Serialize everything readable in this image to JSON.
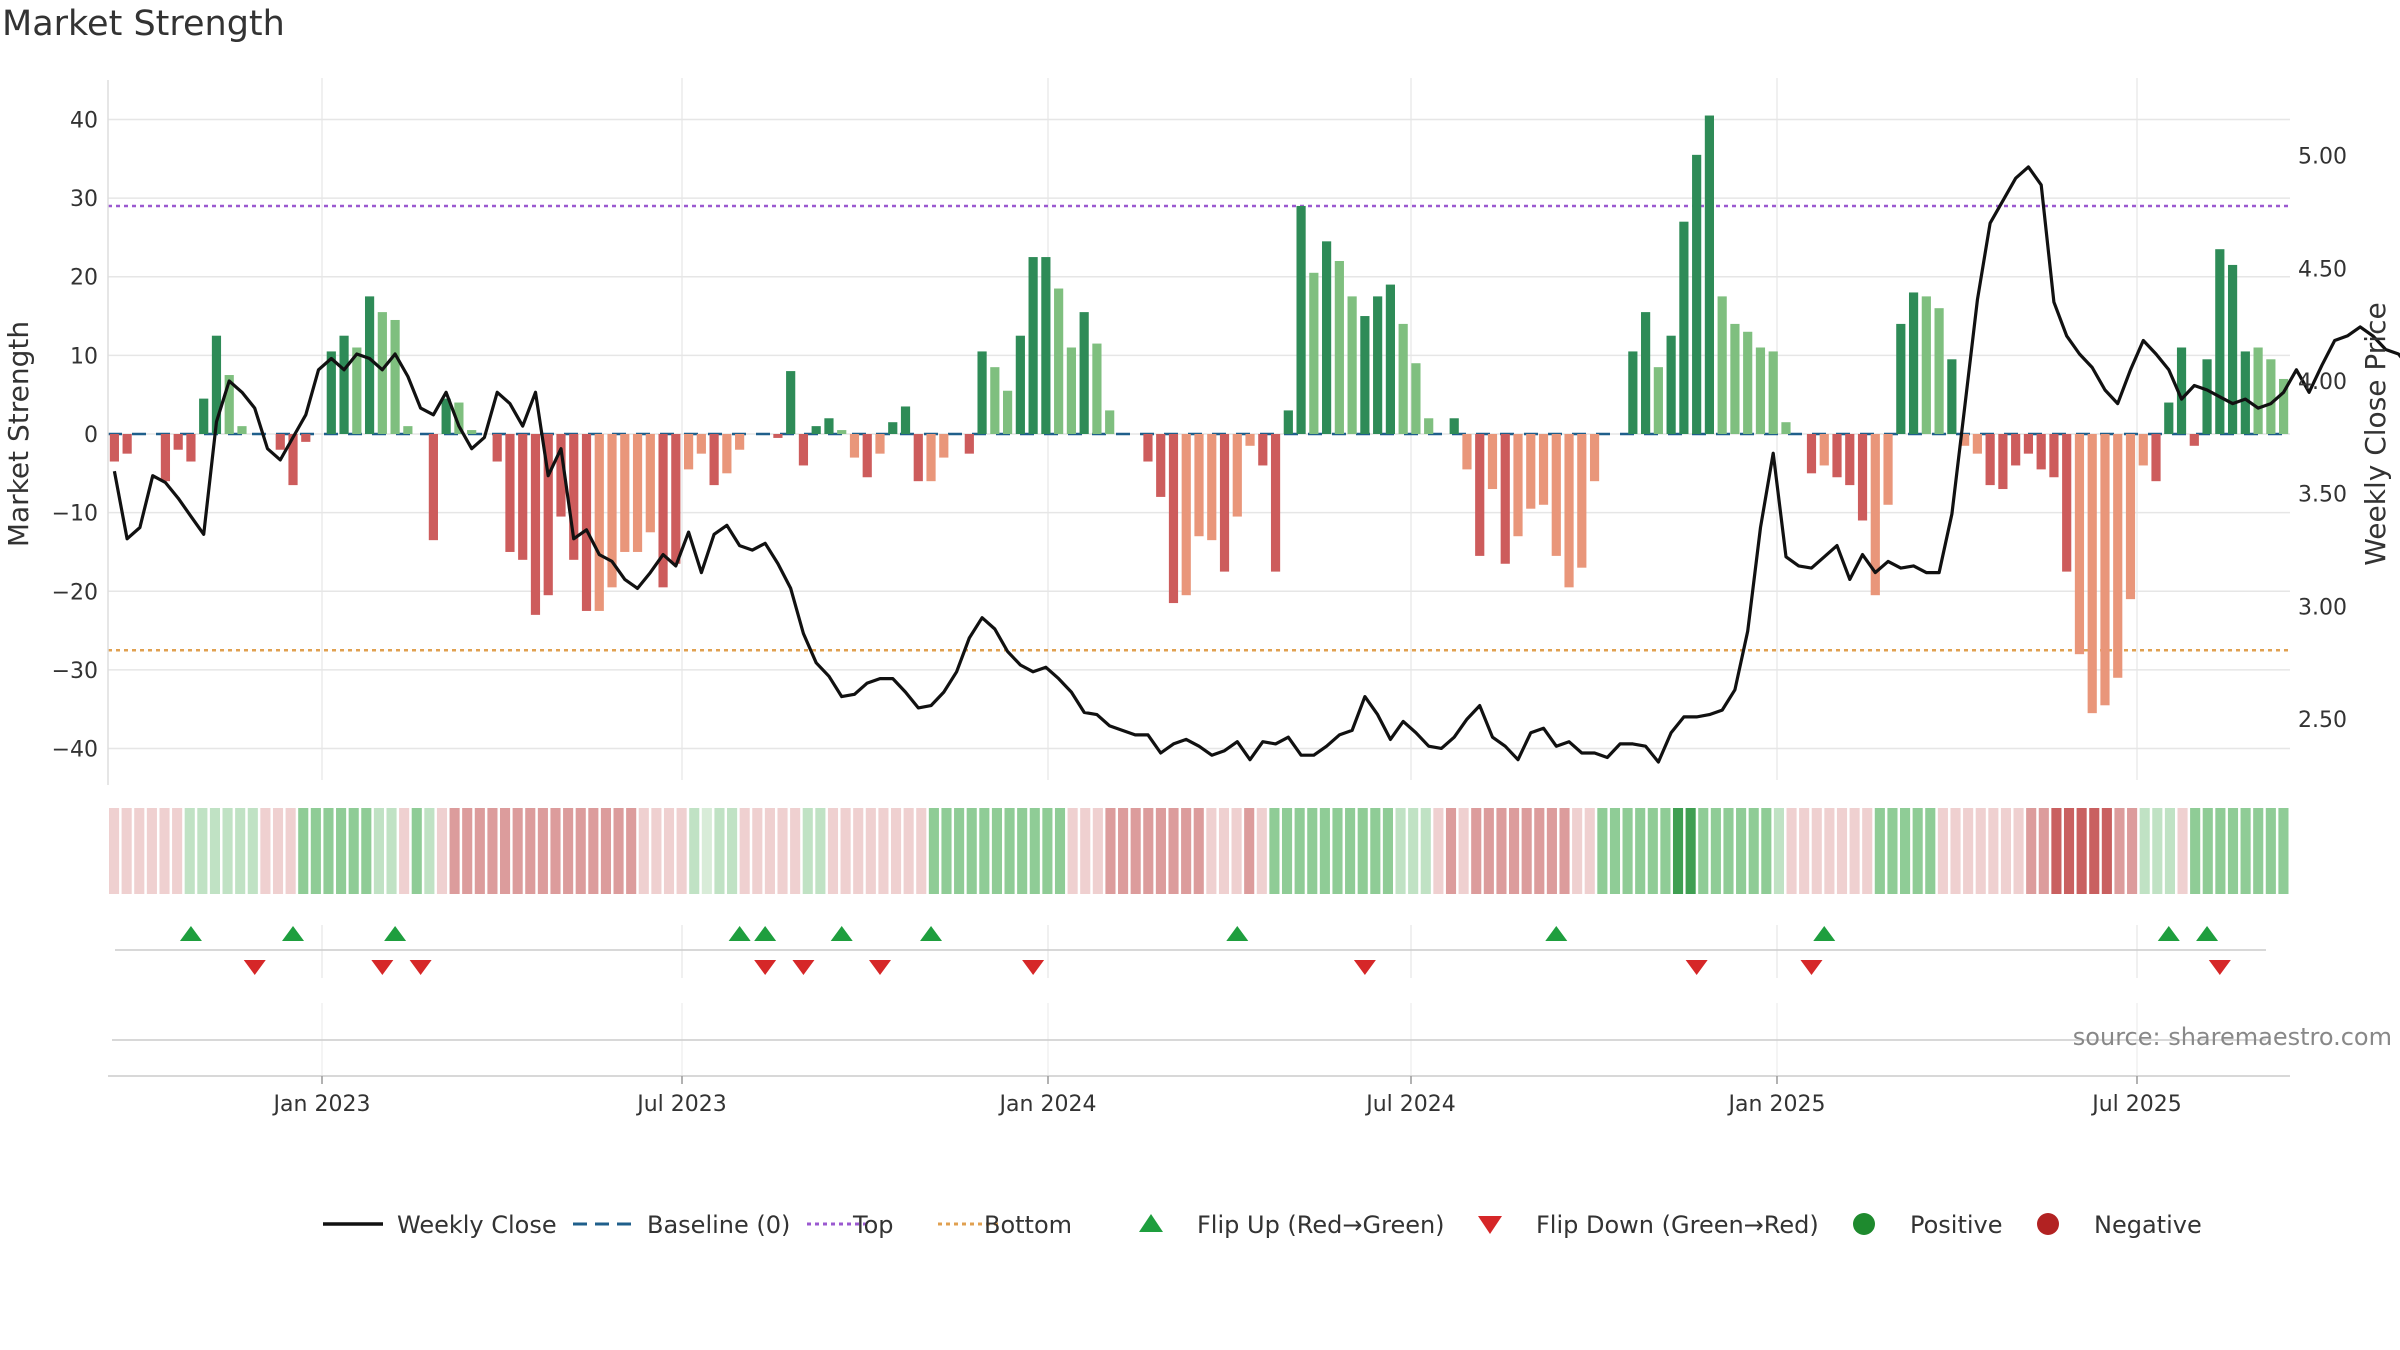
{
  "title": "Market Strength",
  "source": "source: sharemaestro.com",
  "colors": {
    "strong_pos": "#2e8b57",
    "weak_pos": "#7fbf7f",
    "strong_neg": "#cd5c5c",
    "weak_neg": "#e9967a",
    "price_line": "#111111",
    "baseline": "#1f5f8b",
    "top": "#9b59d0",
    "bottom": "#e0a050",
    "flip_up": "#1e9e3e",
    "flip_down": "#d62728",
    "positive": "#1e8a2e",
    "negative": "#b22222",
    "grid": "#e6e6e6"
  },
  "chart_data": {
    "type": "bar",
    "x_ticks": [
      "Jan 2023",
      "Jul 2023",
      "Jan 2024",
      "Jul 2024",
      "Jan 2025",
      "Jul 2025"
    ],
    "y_left": {
      "label": "Market Strength",
      "ticks": [
        "40",
        "30",
        "20",
        "10",
        "0",
        "−10",
        "−20",
        "−30",
        "−40"
      ],
      "range": [
        -44,
        44
      ]
    },
    "y_right": {
      "label": "Weekly Close Price",
      "ticks": [
        "5.00",
        "4.50",
        "4.00",
        "3.50",
        "3.00",
        "2.50"
      ],
      "range": [
        2.23,
        5.3
      ]
    },
    "top_level": 29,
    "bottom_level": -27.5,
    "baseline": 0,
    "strength": [
      -3.5,
      -2.5,
      0,
      0,
      -6,
      -2,
      -3.5,
      4.5,
      12.5,
      7.5,
      1,
      0,
      0,
      -2,
      -6.5,
      -1,
      0,
      10.5,
      12.5,
      11,
      17.5,
      15.5,
      14.5,
      1,
      0,
      -13.5,
      4.5,
      4,
      0.5,
      0,
      -3.5,
      -15,
      -16,
      -23,
      -20.5,
      -10.5,
      -16,
      -22.5,
      -22.5,
      -19.5,
      -15,
      -15,
      -12.5,
      -19.5,
      -16.5,
      -4.5,
      -2.5,
      -6.5,
      -5,
      -2,
      0,
      0,
      -0.5,
      8,
      -4,
      1,
      2,
      0.5,
      -3,
      -5.5,
      -2.5,
      1.5,
      3.5,
      -6,
      -6,
      -3,
      0,
      -2.5,
      10.5,
      8.5,
      5.5,
      12.5,
      22.5,
      22.5,
      18.5,
      11,
      15.5,
      11.5,
      3,
      0,
      0,
      -3.5,
      -8,
      -21.5,
      -20.5,
      -13,
      -13.5,
      -17.5,
      -10.5,
      -1.5,
      -4,
      -17.5,
      3,
      29,
      20.5,
      24.5,
      22,
      17.5,
      15,
      17.5,
      19,
      14,
      9,
      2,
      0,
      2,
      -4.5,
      -15.5,
      -7,
      -16.5,
      -13,
      -9.5,
      -9,
      -15.5,
      -19.5,
      -17,
      -6,
      0,
      0,
      10.5,
      15.5,
      8.5,
      12.5,
      27,
      35.5,
      40.5,
      17.5,
      14,
      13,
      11,
      10.5,
      1.5,
      0,
      -5,
      -4,
      -5.5,
      -6.5,
      -11,
      -20.5,
      -9,
      14,
      18,
      17.5,
      16,
      9.5,
      -1.5,
      -2.5,
      -6.5,
      -7,
      -4,
      -2.5,
      -4.5,
      -5.5,
      -17.5,
      -28,
      -35.5,
      -34.5,
      -31,
      -21,
      -4,
      -6,
      4,
      11,
      -1.5,
      9.5,
      23.5,
      21.5,
      10.5,
      11,
      9.5,
      7
    ],
    "bar_shade": [
      1,
      1,
      0,
      0,
      1,
      1,
      1,
      1,
      1,
      0,
      0,
      0,
      0,
      1,
      1,
      1,
      0,
      1,
      1,
      0,
      1,
      0,
      0,
      0,
      0,
      1,
      1,
      0,
      0,
      0,
      1,
      1,
      1,
      1,
      1,
      1,
      1,
      1,
      0,
      0,
      0,
      0,
      0,
      1,
      1,
      0,
      0,
      1,
      0,
      0,
      0,
      0,
      1,
      1,
      1,
      1,
      1,
      0,
      0,
      1,
      0,
      1,
      1,
      1,
      0,
      0,
      0,
      1,
      1,
      0,
      0,
      1,
      1,
      1,
      0,
      0,
      1,
      0,
      0,
      0,
      0,
      1,
      1,
      1,
      0,
      0,
      0,
      1,
      0,
      0,
      1,
      1,
      1,
      1,
      0,
      1,
      0,
      0,
      1,
      1,
      1,
      0,
      0,
      0,
      0,
      1,
      0,
      1,
      0,
      1,
      0,
      0,
      0,
      0,
      0,
      0,
      0,
      0,
      0,
      1,
      1,
      0,
      1,
      1,
      1,
      1,
      0,
      0,
      0,
      0,
      0,
      0,
      0,
      1,
      0,
      1,
      1,
      1,
      0,
      0,
      1,
      1,
      0,
      0,
      1,
      0,
      0,
      1,
      1,
      1,
      1,
      1,
      1,
      1,
      0,
      0,
      0,
      0,
      0,
      0,
      1,
      1,
      1,
      1,
      1,
      1,
      1,
      1,
      0,
      0,
      0,
      0,
      0
    ],
    "weekly_close": [
      3.6,
      3.3,
      3.35,
      3.58,
      3.55,
      3.48,
      3.4,
      3.32,
      3.82,
      4,
      3.95,
      3.88,
      3.7,
      3.65,
      3.75,
      3.85,
      4.05,
      4.1,
      4.05,
      4.12,
      4.1,
      4.05,
      4.12,
      4.02,
      3.88,
      3.85,
      3.95,
      3.8,
      3.7,
      3.75,
      3.95,
      3.9,
      3.8,
      3.95,
      3.58,
      3.7,
      3.3,
      3.34,
      3.23,
      3.2,
      3.12,
      3.08,
      3.15,
      3.23,
      3.18,
      3.33,
      3.15,
      3.32,
      3.36,
      3.27,
      3.25,
      3.28,
      3.19,
      3.08,
      2.88,
      2.75,
      2.69,
      2.6,
      2.61,
      2.66,
      2.68,
      2.68,
      2.62,
      2.55,
      2.56,
      2.62,
      2.71,
      2.86,
      2.95,
      2.9,
      2.8,
      2.74,
      2.71,
      2.73,
      2.68,
      2.62,
      2.53,
      2.52,
      2.47,
      2.45,
      2.43,
      2.43,
      2.35,
      2.39,
      2.41,
      2.38,
      2.34,
      2.36,
      2.4,
      2.32,
      2.4,
      2.39,
      2.42,
      2.34,
      2.34,
      2.38,
      2.43,
      2.45,
      2.6,
      2.52,
      2.41,
      2.49,
      2.44,
      2.38,
      2.37,
      2.42,
      2.5,
      2.56,
      2.42,
      2.38,
      2.32,
      2.44,
      2.46,
      2.38,
      2.4,
      2.35,
      2.35,
      2.33,
      2.39,
      2.39,
      2.38,
      2.31,
      2.44,
      2.51,
      2.51,
      2.52,
      2.54,
      2.63,
      2.89,
      3.35,
      3.68,
      3.22,
      3.18,
      3.17,
      3.22,
      3.27,
      3.12,
      3.23,
      3.15,
      3.2,
      3.17,
      3.18,
      3.15,
      3.15,
      3.41,
      3.88,
      4.36,
      4.7,
      4.8,
      4.9,
      4.95,
      4.87,
      4.35,
      4.2,
      4.12,
      4.06,
      3.96,
      3.9,
      4.05,
      4.18,
      4.12,
      4.05,
      3.92,
      3.98,
      3.96,
      3.93,
      3.9,
      3.92,
      3.88,
      3.9,
      3.95,
      4.05,
      3.95,
      4.07,
      4.18,
      4.2,
      4.24,
      4.2,
      4.14,
      4.12,
      4.05
    ],
    "flip_up_weeks": [
      6,
      14,
      22,
      49,
      51,
      57,
      64,
      88,
      113,
      134,
      161,
      164
    ],
    "flip_down_weeks": [
      11,
      21,
      24,
      51,
      54,
      60,
      72,
      98,
      124,
      133,
      165
    ],
    "band_levels": [
      -1,
      -1,
      -1,
      -1,
      -1,
      -1,
      1,
      1,
      1,
      1,
      1,
      1,
      -1,
      -1,
      -1,
      2,
      2,
      2,
      2,
      2,
      2,
      1,
      1,
      -1,
      2,
      1,
      -1,
      -2,
      -2,
      -2,
      -2,
      -2,
      -2,
      -2,
      -2,
      -2,
      -2,
      -2,
      -2,
      -2,
      -2,
      -2,
      -1,
      -1,
      -1,
      -1,
      1,
      0,
      1,
      1,
      -1,
      -1,
      -1,
      -1,
      -1,
      1,
      1,
      -1,
      -1,
      -1,
      -1,
      -1,
      -1,
      -1,
      -1,
      2,
      2,
      2,
      2,
      2,
      2,
      2,
      2,
      2,
      2,
      2,
      -1,
      -1,
      -1,
      -2,
      -2,
      -2,
      -2,
      -2,
      -2,
      -2,
      -2,
      -1,
      -1,
      -1,
      -2,
      -1,
      2,
      2,
      2,
      2,
      2,
      2,
      2,
      2,
      2,
      2,
      1,
      1,
      1,
      -1,
      -2,
      -1,
      -2,
      -2,
      -2,
      -2,
      -2,
      -2,
      -2,
      -2,
      -1,
      -1,
      2,
      2,
      2,
      2,
      2,
      2,
      3,
      3,
      2,
      2,
      2,
      2,
      2,
      2,
      1,
      -1,
      -1,
      -1,
      -1,
      -1,
      -1,
      -1,
      2,
      2,
      2,
      2,
      2,
      -1,
      -1,
      -1,
      -1,
      -1,
      -1,
      -1,
      -2,
      -2,
      -3,
      -3,
      -3,
      -3,
      -3,
      -2,
      -2,
      1,
      1,
      1,
      -1,
      2,
      2,
      2,
      2,
      2,
      2,
      2,
      2
    ],
    "legend": [
      "Weekly Close",
      "Baseline (0)",
      "Top",
      "Bottom",
      "Flip Up (Red→Green)",
      "Flip Down (Green→Red)",
      "Positive",
      "Negative"
    ]
  }
}
